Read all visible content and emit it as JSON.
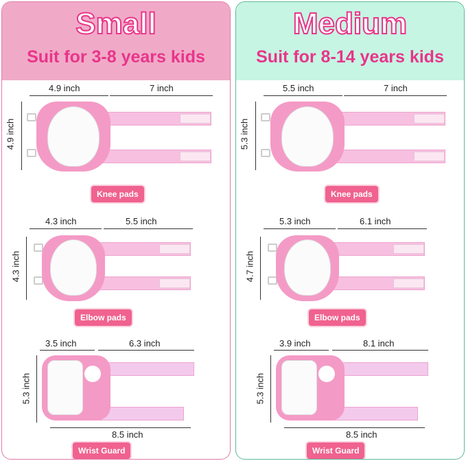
{
  "panels": [
    {
      "title": "Small",
      "subtitle": "Suit for 3-8 years kids",
      "knee": {
        "width": "4.9 inch",
        "strap": "7 inch",
        "height": "4.9 inch",
        "label": "Knee pads"
      },
      "elbow": {
        "width": "4.3 inch",
        "strap": "5.5 inch",
        "height": "4.3 inch",
        "label": "Elbow pads"
      },
      "wrist": {
        "width": "3.5 inch",
        "strap": "6.3 inch",
        "height": "5.3 inch",
        "total": "8.5 inch",
        "label": "Wrist Guard"
      }
    },
    {
      "title": "Medium",
      "subtitle": "Suit for 8-14 years kids",
      "knee": {
        "width": "5.5 inch",
        "strap": "7 inch",
        "height": "5.3 inch",
        "label": "Knee pads"
      },
      "elbow": {
        "width": "5.3 inch",
        "strap": "6.1 inch",
        "height": "4.7 inch",
        "label": "Elbow pads"
      },
      "wrist": {
        "width": "3.9 inch",
        "strap": "8.1 inch",
        "height": "5.3 inch",
        "total": "8.5 inch",
        "label": "Wrist Guard"
      }
    }
  ],
  "colors": {
    "accent": "#e8358a",
    "small_bg": "#f0aac7",
    "medium_bg": "#c6f5e3",
    "label_bg": "#f0628f",
    "pad_pink": "#f49ac6"
  }
}
